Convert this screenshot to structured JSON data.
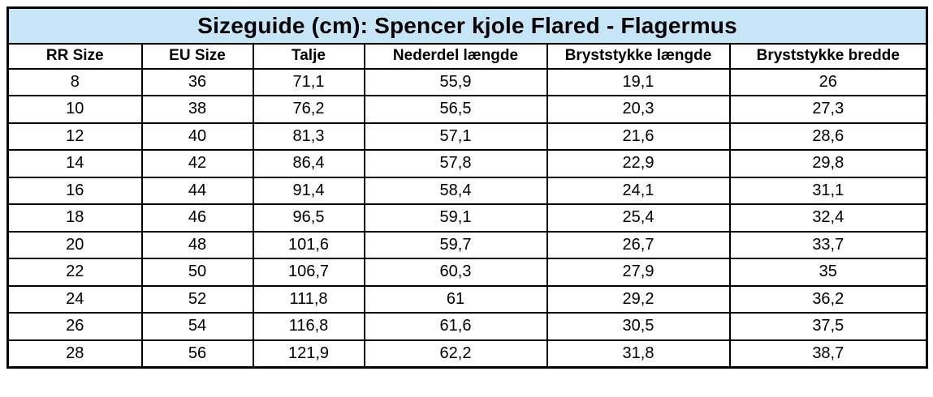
{
  "table": {
    "title": "Sizeguide (cm): Spencer kjole Flared - Flagermus",
    "unit": "cm",
    "columns": [
      "RR Size",
      "EU Size",
      "Talje",
      "Nederdel længde",
      "Bryststykke længde",
      "Bryststykke bredde"
    ],
    "rows": [
      [
        "8",
        "36",
        "71,1",
        "55,9",
        "19,1",
        "26"
      ],
      [
        "10",
        "38",
        "76,2",
        "56,5",
        "20,3",
        "27,3"
      ],
      [
        "12",
        "40",
        "81,3",
        "57,1",
        "21,6",
        "28,6"
      ],
      [
        "14",
        "42",
        "86,4",
        "57,8",
        "22,9",
        "29,8"
      ],
      [
        "16",
        "44",
        "91,4",
        "58,4",
        "24,1",
        "31,1"
      ],
      [
        "18",
        "46",
        "96,5",
        "59,1",
        "25,4",
        "32,4"
      ],
      [
        "20",
        "48",
        "101,6",
        "59,7",
        "26,7",
        "33,7"
      ],
      [
        "22",
        "50",
        "106,7",
        "60,3",
        "27,9",
        "35"
      ],
      [
        "24",
        "52",
        "111,8",
        "61",
        "29,2",
        "36,2"
      ],
      [
        "26",
        "54",
        "116,8",
        "61,6",
        "30,5",
        "37,5"
      ],
      [
        "28",
        "56",
        "121,9",
        "62,2",
        "31,8",
        "38,7"
      ]
    ],
    "colors": {
      "title_bg": "#c6e6f7",
      "border": "#000000",
      "cell_bg": "#ffffff",
      "text": "#000000"
    }
  }
}
